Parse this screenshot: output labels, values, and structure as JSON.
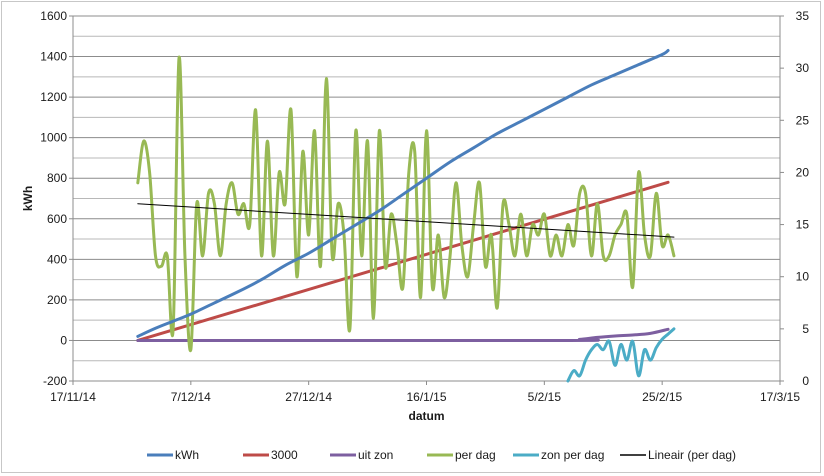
{
  "chart_data": {
    "type": "line",
    "xlabel": "datum",
    "ylabel": "kWh",
    "y2label": "",
    "xlim": [
      "2014-11-17",
      "2015-03-17"
    ],
    "ylim": [
      -200,
      1600
    ],
    "y2lim": [
      0,
      35
    ],
    "x_ticks": [
      {
        "date": "2014-11-17",
        "label": "17/11/14"
      },
      {
        "date": "2014-12-07",
        "label": "7/12/14"
      },
      {
        "date": "2014-12-27",
        "label": "27/12/14"
      },
      {
        "date": "2015-01-16",
        "label": "16/1/15"
      },
      {
        "date": "2015-02-05",
        "label": "5/2/15"
      },
      {
        "date": "2015-02-25",
        "label": "25/2/15"
      },
      {
        "date": "2015-03-17",
        "label": "17/3/15"
      }
    ],
    "y_ticks": [
      -200,
      0,
      200,
      400,
      600,
      800,
      1000,
      1200,
      1400,
      1600
    ],
    "y2_ticks": [
      0,
      5,
      10,
      15,
      20,
      25,
      30,
      35
    ],
    "grid": true,
    "legend_position": "bottom",
    "series": [
      {
        "name": "kWh",
        "axis": "left",
        "color": "#4a7ebb",
        "points": [
          [
            "2014-11-28",
            20
          ],
          [
            "2014-12-01",
            60
          ],
          [
            "2014-12-04",
            95
          ],
          [
            "2014-12-07",
            130
          ],
          [
            "2014-12-11",
            185
          ],
          [
            "2014-12-15",
            240
          ],
          [
            "2014-12-19",
            300
          ],
          [
            "2014-12-23",
            370
          ],
          [
            "2014-12-27",
            430
          ],
          [
            "2014-12-31",
            500
          ],
          [
            "2015-01-04",
            570
          ],
          [
            "2015-01-08",
            640
          ],
          [
            "2015-01-12",
            720
          ],
          [
            "2015-01-16",
            800
          ],
          [
            "2015-01-20",
            880
          ],
          [
            "2015-01-24",
            950
          ],
          [
            "2015-01-28",
            1020
          ],
          [
            "2015-02-01",
            1080
          ],
          [
            "2015-02-05",
            1140
          ],
          [
            "2015-02-09",
            1200
          ],
          [
            "2015-02-13",
            1260
          ],
          [
            "2015-02-17",
            1310
          ],
          [
            "2015-02-21",
            1360
          ],
          [
            "2015-02-25",
            1410
          ],
          [
            "2015-02-26",
            1430
          ]
        ]
      },
      {
        "name": "3000",
        "axis": "left",
        "color": "#be4b48",
        "points": [
          [
            "2014-11-28",
            0
          ],
          [
            "2015-02-26",
            780
          ]
        ]
      },
      {
        "name": "uit zon",
        "axis": "left",
        "color": "#7d5fa0",
        "points": [
          [
            "2014-11-28",
            0
          ],
          [
            "2015-02-08",
            0
          ],
          [
            "2015-02-11",
            5
          ],
          [
            "2015-02-14",
            15
          ],
          [
            "2015-02-17",
            22
          ],
          [
            "2015-02-20",
            27
          ],
          [
            "2015-02-23",
            35
          ],
          [
            "2015-02-26",
            55
          ]
        ]
      },
      {
        "name": "per dag",
        "axis": "right",
        "color": "#98b954",
        "points": [
          [
            "2014-11-28",
            19
          ],
          [
            "2014-11-29",
            23
          ],
          [
            "2014-11-30",
            20
          ],
          [
            "2014-12-01",
            12
          ],
          [
            "2014-12-02",
            11
          ],
          [
            "2014-12-03",
            12
          ],
          [
            "2014-12-04",
            5
          ],
          [
            "2014-12-05",
            31
          ],
          [
            "2014-12-06",
            12
          ],
          [
            "2014-12-07",
            3
          ],
          [
            "2014-12-08",
            17
          ],
          [
            "2014-12-09",
            12
          ],
          [
            "2014-12-10",
            18
          ],
          [
            "2014-12-11",
            17
          ],
          [
            "2014-12-12",
            12
          ],
          [
            "2014-12-13",
            17
          ],
          [
            "2014-12-14",
            19
          ],
          [
            "2014-12-15",
            16
          ],
          [
            "2014-12-16",
            17
          ],
          [
            "2014-12-17",
            15
          ],
          [
            "2014-12-18",
            26
          ],
          [
            "2014-12-19",
            12
          ],
          [
            "2014-12-20",
            23
          ],
          [
            "2014-12-21",
            12
          ],
          [
            "2014-12-22",
            20
          ],
          [
            "2014-12-23",
            17
          ],
          [
            "2014-12-24",
            26
          ],
          [
            "2014-12-25",
            10
          ],
          [
            "2014-12-26",
            22
          ],
          [
            "2014-12-27",
            14
          ],
          [
            "2014-12-28",
            24
          ],
          [
            "2014-12-29",
            11
          ],
          [
            "2014-12-30",
            29
          ],
          [
            "2014-12-31",
            12
          ],
          [
            "2015-01-01",
            17
          ],
          [
            "2015-01-02",
            14
          ],
          [
            "2015-01-03",
            5
          ],
          [
            "2015-01-04",
            24
          ],
          [
            "2015-01-05",
            12
          ],
          [
            "2015-01-06",
            23
          ],
          [
            "2015-01-07",
            6
          ],
          [
            "2015-01-08",
            24
          ],
          [
            "2015-01-09",
            11
          ],
          [
            "2015-01-10",
            16
          ],
          [
            "2015-01-11",
            13
          ],
          [
            "2015-01-12",
            9
          ],
          [
            "2015-01-13",
            20
          ],
          [
            "2015-01-14",
            22
          ],
          [
            "2015-01-15",
            8
          ],
          [
            "2015-01-16",
            24
          ],
          [
            "2015-01-17",
            9
          ],
          [
            "2015-01-18",
            14
          ],
          [
            "2015-01-19",
            8
          ],
          [
            "2015-01-20",
            12
          ],
          [
            "2015-01-21",
            19
          ],
          [
            "2015-01-22",
            13
          ],
          [
            "2015-01-23",
            10
          ],
          [
            "2015-01-24",
            15
          ],
          [
            "2015-01-25",
            19
          ],
          [
            "2015-01-26",
            11
          ],
          [
            "2015-01-27",
            14
          ],
          [
            "2015-01-28",
            7
          ],
          [
            "2015-01-29",
            17
          ],
          [
            "2015-01-30",
            15
          ],
          [
            "2015-01-31",
            12
          ],
          [
            "2015-02-01",
            16
          ],
          [
            "2015-02-02",
            12
          ],
          [
            "2015-02-03",
            15
          ],
          [
            "2015-02-04",
            14
          ],
          [
            "2015-02-05",
            16
          ],
          [
            "2015-02-06",
            12
          ],
          [
            "2015-02-07",
            14
          ],
          [
            "2015-02-08",
            12
          ],
          [
            "2015-02-09",
            15
          ],
          [
            "2015-02-10",
            13
          ],
          [
            "2015-02-11",
            18
          ],
          [
            "2015-02-12",
            18
          ],
          [
            "2015-02-13",
            12
          ],
          [
            "2015-02-14",
            17
          ],
          [
            "2015-02-15",
            12
          ],
          [
            "2015-02-16",
            12
          ],
          [
            "2015-02-17",
            14
          ],
          [
            "2015-02-18",
            15
          ],
          [
            "2015-02-19",
            16
          ],
          [
            "2015-02-20",
            9
          ],
          [
            "2015-02-21",
            20
          ],
          [
            "2015-02-22",
            14
          ],
          [
            "2015-02-23",
            12
          ],
          [
            "2015-02-24",
            18
          ],
          [
            "2015-02-25",
            13
          ],
          [
            "2015-02-26",
            14
          ],
          [
            "2015-02-27",
            12
          ]
        ]
      },
      {
        "name": "zon per dag",
        "axis": "right",
        "color": "#4bacc6",
        "points": [
          [
            "2015-02-09",
            0
          ],
          [
            "2015-02-10",
            1
          ],
          [
            "2015-02-11",
            0.5
          ],
          [
            "2015-02-12",
            2
          ],
          [
            "2015-02-13",
            3
          ],
          [
            "2015-02-14",
            3.5
          ],
          [
            "2015-02-15",
            3
          ],
          [
            "2015-02-16",
            3.8
          ],
          [
            "2015-02-17",
            1.5
          ],
          [
            "2015-02-18",
            3.5
          ],
          [
            "2015-02-19",
            2
          ],
          [
            "2015-02-20",
            3.8
          ],
          [
            "2015-02-21",
            0.5
          ],
          [
            "2015-02-22",
            3
          ],
          [
            "2015-02-23",
            2
          ],
          [
            "2015-02-24",
            3.2
          ],
          [
            "2015-02-25",
            4
          ],
          [
            "2015-02-26",
            4.5
          ],
          [
            "2015-02-27",
            5
          ]
        ]
      },
      {
        "name": "Lineair (per dag)",
        "axis": "right",
        "color": "#000000",
        "points": [
          [
            "2014-11-28",
            17
          ],
          [
            "2015-02-27",
            13.8
          ]
        ]
      }
    ]
  }
}
